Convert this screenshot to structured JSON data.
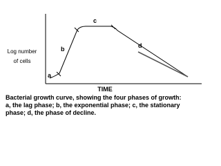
{
  "diagram": {
    "y_axis_label": [
      "Log number",
      "of cells"
    ],
    "x_axis_label": "TIME",
    "phase_labels": [
      "a",
      "b",
      "c",
      "d"
    ],
    "caption": [
      "Bacterial growth curve, showing the four phases of growth:",
      "a, the lag phase; b, the exponential phase; c, the stationary",
      "phase; d, the phase of decline."
    ]
  }
}
